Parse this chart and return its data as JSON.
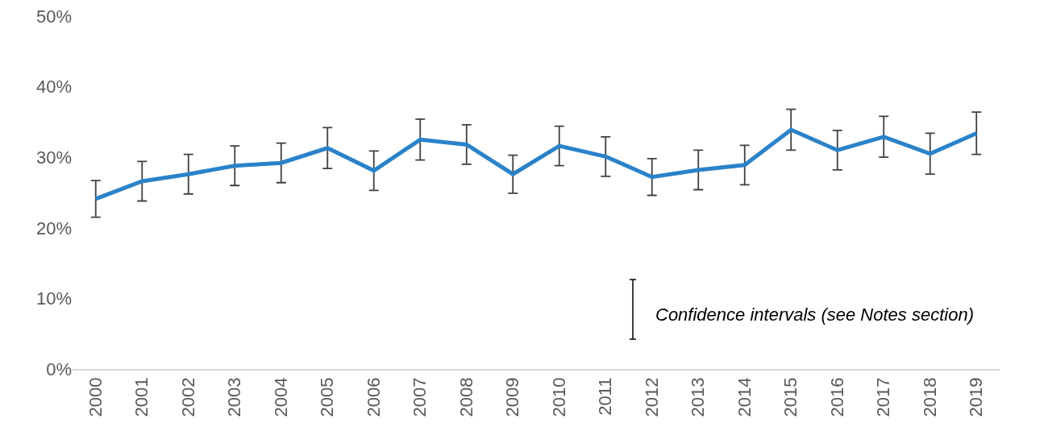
{
  "chart_data": {
    "type": "line",
    "categories": [
      "2000",
      "2001",
      "2002",
      "2003",
      "2004",
      "2005",
      "2006",
      "2007",
      "2008",
      "2009",
      "2010",
      "2011",
      "2012",
      "2013",
      "2014",
      "2015",
      "2016",
      "2017",
      "2018",
      "2019"
    ],
    "series": [
      {
        "color": "#2a82c9",
        "values": [
          24.1,
          26.6,
          27.6,
          28.8,
          29.2,
          31.3,
          28.1,
          32.5,
          31.8,
          27.6,
          31.6,
          30.1,
          27.2,
          28.2,
          28.9,
          33.9,
          31.0,
          32.9,
          30.5,
          33.4
        ],
        "errors": [
          2.6,
          2.8,
          2.8,
          2.8,
          2.8,
          2.9,
          2.8,
          2.9,
          2.8,
          2.7,
          2.8,
          2.8,
          2.6,
          2.8,
          2.8,
          2.9,
          2.8,
          2.9,
          2.9,
          3.0
        ]
      }
    ],
    "ylim": [
      0,
      50
    ],
    "yticks": [
      {
        "value": 0,
        "label": "0%"
      },
      {
        "value": 10,
        "label": "10%"
      },
      {
        "value": 20,
        "label": "20%"
      },
      {
        "value": 30,
        "label": "30%"
      },
      {
        "value": 40,
        "label": "40%"
      },
      {
        "value": 50,
        "label": "50%"
      }
    ],
    "grid": false,
    "marker": "none",
    "line_style": "solid",
    "annotations": [
      "Confidence intervals (see Notes section)"
    ]
  }
}
